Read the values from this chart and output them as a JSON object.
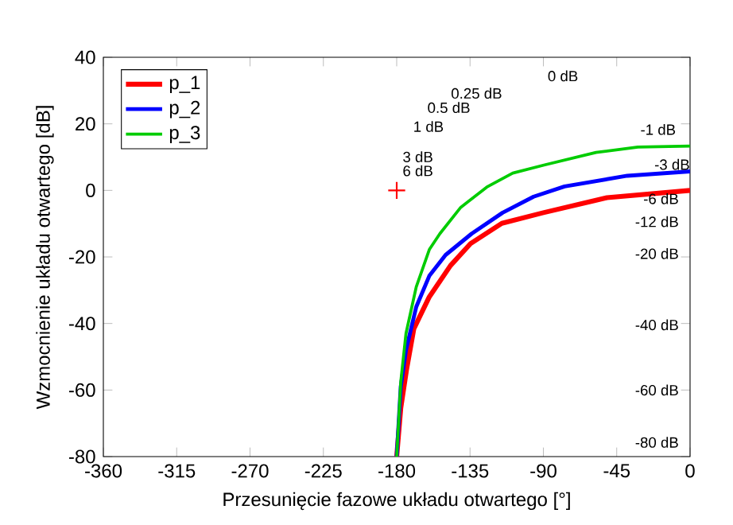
{
  "chart_data": {
    "type": "line",
    "xlabel": "Przesunięcie fazowe układu otwartego [°]",
    "ylabel": "Wzmocnienie układu otwartego [dB]",
    "xlim": [
      -360,
      0
    ],
    "ylim": [
      -80,
      40
    ],
    "xticks": [
      -360,
      -315,
      -270,
      -225,
      -180,
      -135,
      -90,
      -45,
      0
    ],
    "yticks": [
      -80,
      -60,
      -40,
      -20,
      0,
      20,
      40
    ],
    "grid": false,
    "legend": "top left",
    "series": [
      {
        "name": "p_1",
        "color": "#ff0000",
        "x": [
          0,
          -51,
          -90,
          -115.5,
          -134.7,
          -147,
          -160,
          -169.5,
          -174,
          -177.5,
          -180
        ],
        "values": [
          0,
          -2.2,
          -6.7,
          -9.9,
          -16,
          -22.6,
          -32,
          -41.6,
          -54,
          -65.4,
          -80
        ]
      },
      {
        "name": "p_2",
        "color": "#0000ff",
        "x": [
          0,
          -38.5,
          -77,
          -96,
          -115,
          -134,
          -150,
          -160,
          -168,
          -174.3,
          -177.5,
          -180
        ],
        "values": [
          5.7,
          4.4,
          1.2,
          -1.9,
          -6.7,
          -13,
          -19.4,
          -25.7,
          -35,
          -48,
          -59,
          -80
        ]
      },
      {
        "name": "p_3",
        "color": "#00cc00",
        "x": [
          0,
          -32,
          -57.7,
          -89.6,
          -108.8,
          -124.7,
          -140.7,
          -153.5,
          -160,
          -168,
          -174.3,
          -177.5,
          -180
        ],
        "values": [
          13.3,
          13,
          11.4,
          7.6,
          5.2,
          1,
          -5.1,
          -13,
          -17.8,
          -29,
          -43,
          -57.5,
          -80
        ]
      },
      {
        "type": "scatter",
        "marker": "cross",
        "color": "#ff0000",
        "x": [
          -180
        ],
        "values": [
          0
        ]
      }
    ],
    "annotations": [
      "0 dB",
      "0.25 dB",
      "0.5 dB",
      "1 dB",
      "3 dB",
      "6 dB",
      "-1 dB",
      "-3 dB",
      "-6 dB",
      "-12 dB",
      "-20 dB",
      "-40 dB",
      "-60 dB",
      "-80 dB"
    ]
  }
}
